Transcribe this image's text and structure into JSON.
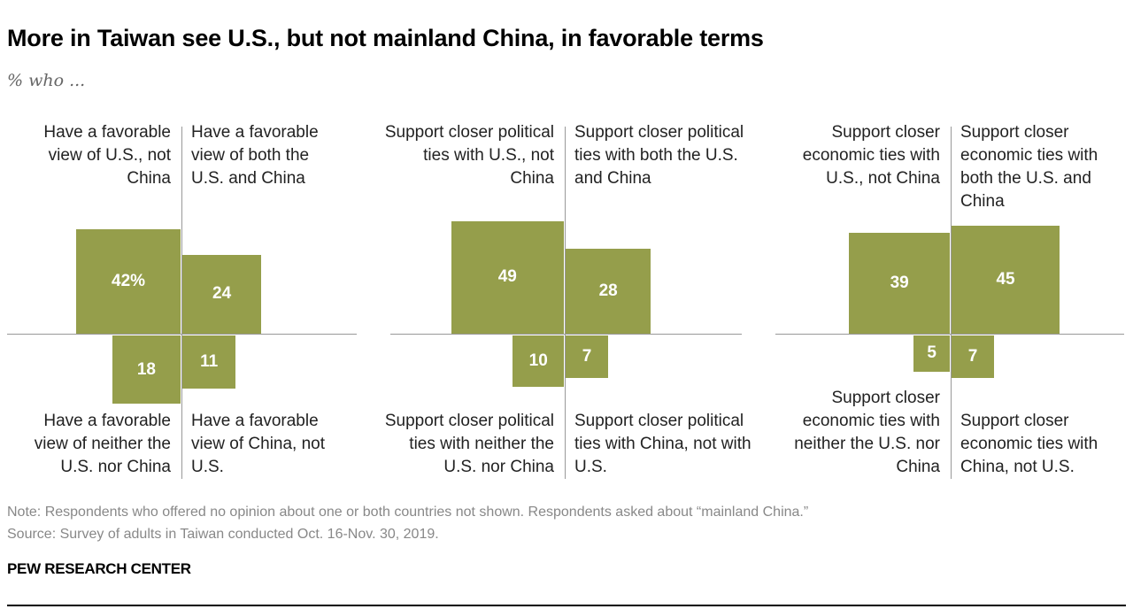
{
  "title": "More in Taiwan see U.S., but not mainland China, in favorable terms",
  "subtitle": "% who ...",
  "note": "Note: Respondents who offered no opinion about one or both countries not shown. Respondents asked about “mainland China.”",
  "source": "Source: Survey of adults in Taiwan conducted Oct. 16-Nov. 30, 2019.",
  "brand": "PEW RESEARCH CENTER",
  "colors": {
    "bar": "#959e4b",
    "axis": "#999999"
  },
  "chart_data": [
    {
      "type": "quadrant-square",
      "quadrants": [
        {
          "position": "top-left",
          "label": "Have a favorable view of U.S., not China",
          "value": 42,
          "display": "42%"
        },
        {
          "position": "top-right",
          "label": "Have a favorable view of both the U.S. and China",
          "value": 24,
          "display": "24"
        },
        {
          "position": "bottom-left",
          "label": "Have a favorable view of neither the U.S. nor China",
          "value": 18,
          "display": "18"
        },
        {
          "position": "bottom-right",
          "label": "Have a favorable view of China, not U.S.",
          "value": 11,
          "display": "11"
        }
      ]
    },
    {
      "type": "quadrant-square",
      "quadrants": [
        {
          "position": "top-left",
          "label": "Support closer political ties with U.S., not China",
          "value": 49,
          "display": "49"
        },
        {
          "position": "top-right",
          "label": "Support closer political ties with both the U.S. and China",
          "value": 28,
          "display": "28"
        },
        {
          "position": "bottom-left",
          "label": "Support closer political ties with neither the U.S. nor China",
          "value": 10,
          "display": "10"
        },
        {
          "position": "bottom-right",
          "label": "Support closer political ties with China, not with U.S.",
          "value": 7,
          "display": "7"
        }
      ]
    },
    {
      "type": "quadrant-square",
      "quadrants": [
        {
          "position": "top-left",
          "label": "Support closer economic ties with U.S., not China",
          "value": 39,
          "display": "39"
        },
        {
          "position": "top-right",
          "label": "Support closer economic ties with both the U.S. and China",
          "value": 45,
          "display": "45"
        },
        {
          "position": "bottom-left",
          "label": "Support closer economic ties with neither the U.S. nor China",
          "value": 5,
          "display": "5"
        },
        {
          "position": "bottom-right",
          "label": "Support closer economic ties with China, not U.S.",
          "value": 7,
          "display": "7"
        }
      ]
    }
  ]
}
